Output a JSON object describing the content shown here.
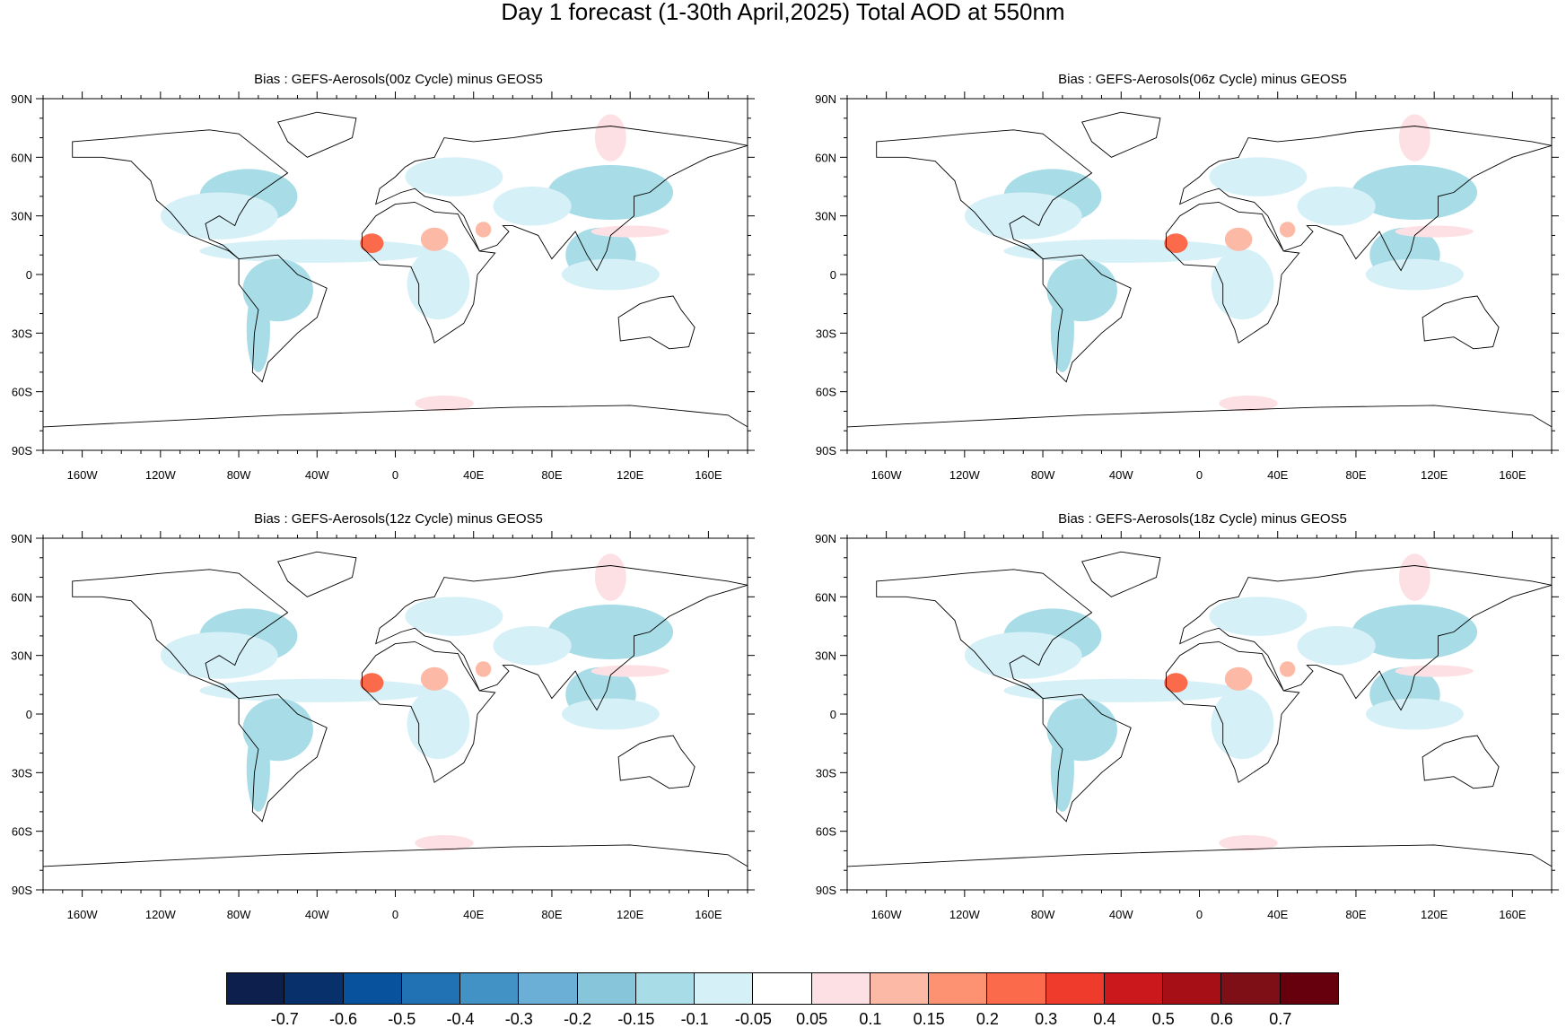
{
  "title": "Day 1 forecast (1-30th April,2025) Total AOD at 550nm",
  "panels": [
    {
      "title": "Bias : GEFS-Aerosols(00z Cycle) minus GEOS5"
    },
    {
      "title": "Bias : GEFS-Aerosols(06z Cycle) minus GEOS5"
    },
    {
      "title": "Bias : GEFS-Aerosols(12z Cycle) minus GEOS5"
    },
    {
      "title": "Bias : GEFS-Aerosols(18z Cycle) minus GEOS5"
    }
  ],
  "axes": {
    "lat_labels": [
      "90N",
      "60N",
      "30N",
      "0",
      "30S",
      "60S",
      "90S"
    ],
    "lat_values": [
      90,
      60,
      30,
      0,
      -30,
      -60,
      -90
    ],
    "lon_labels": [
      "160W",
      "120W",
      "80W",
      "40W",
      "0",
      "40E",
      "80E",
      "120E",
      "160E"
    ],
    "lon_values": [
      -160,
      -120,
      -80,
      -40,
      0,
      40,
      80,
      120,
      160
    ],
    "lon_range": [
      -180,
      180
    ],
    "lat_range": [
      -90,
      90
    ]
  },
  "colorbar": {
    "labels": [
      "-0.7",
      "-0.6",
      "-0.5",
      "-0.4",
      "-0.3",
      "-0.2",
      "-0.15",
      "-0.1",
      "-0.05",
      "0.05",
      "0.1",
      "0.15",
      "0.2",
      "0.3",
      "0.4",
      "0.5",
      "0.6",
      "0.7"
    ],
    "colors": [
      "#0c1f4d",
      "#08306b",
      "#08519c",
      "#2171b5",
      "#4292c6",
      "#6baed6",
      "#86c5da",
      "#a8dce6",
      "#d6f0f8",
      "#ffffff",
      "#fde0e4",
      "#fcb9a6",
      "#fc9272",
      "#fb6a4a",
      "#ef3b2c",
      "#cb181d",
      "#a50f15",
      "#7f0f16",
      "#67000d"
    ]
  },
  "bias_blobs": [
    {
      "lon": 85,
      "lat": 38,
      "rx": 7,
      "ry": 3,
      "color": "#0c1f4d"
    },
    {
      "lon": 100,
      "lat": 37,
      "rx": 14,
      "ry": 4,
      "color": "#4292c6"
    },
    {
      "lon": 120,
      "lat": 44,
      "rx": 10,
      "ry": 8,
      "color": "#4292c6"
    },
    {
      "lon": 110,
      "lat": 42,
      "rx": 32,
      "ry": 14,
      "color": "#a8dce6"
    },
    {
      "lon": 70,
      "lat": 35,
      "rx": 20,
      "ry": 10,
      "color": "#d6f0f8"
    },
    {
      "lon": -75,
      "lat": 40,
      "rx": 25,
      "ry": 14,
      "color": "#a8dce6"
    },
    {
      "lon": -90,
      "lat": 30,
      "rx": 30,
      "ry": 12,
      "color": "#d6f0f8"
    },
    {
      "lon": -40,
      "lat": 12,
      "rx": 60,
      "ry": 6,
      "color": "#d6f0f8"
    },
    {
      "lon": -60,
      "lat": -8,
      "rx": 18,
      "ry": 16,
      "color": "#a8dce6"
    },
    {
      "lon": -70,
      "lat": -28,
      "rx": 6,
      "ry": 22,
      "color": "#a8dce6"
    },
    {
      "lon": 22,
      "lat": -3,
      "rx": 10,
      "ry": 6,
      "color": "#6baed6"
    },
    {
      "lon": 22,
      "lat": -5,
      "rx": 16,
      "ry": 18,
      "color": "#d6f0f8"
    },
    {
      "lon": 105,
      "lat": 10,
      "rx": 18,
      "ry": 14,
      "color": "#a8dce6"
    },
    {
      "lon": 110,
      "lat": 0,
      "rx": 25,
      "ry": 8,
      "color": "#d6f0f8"
    },
    {
      "lon": 30,
      "lat": 50,
      "rx": 25,
      "ry": 10,
      "color": "#d6f0f8"
    },
    {
      "lon": -12,
      "lat": 16,
      "rx": 6,
      "ry": 5,
      "color": "#fb6a4a"
    },
    {
      "lon": 20,
      "lat": 18,
      "rx": 7,
      "ry": 6,
      "color": "#fcb9a6"
    },
    {
      "lon": 45,
      "lat": 23,
      "rx": 4,
      "ry": 4,
      "color": "#fcb9a6"
    },
    {
      "lon": 120,
      "lat": 22,
      "rx": 20,
      "ry": 3,
      "color": "#fde0e4"
    },
    {
      "lon": 25,
      "lat": -66,
      "rx": 15,
      "ry": 4,
      "color": "#fde0e4"
    },
    {
      "lon": 110,
      "lat": 70,
      "rx": 8,
      "ry": 12,
      "color": "#fde0e4"
    }
  ],
  "land": [
    {
      "name": "north-america",
      "points": [
        [
          -165,
          68
        ],
        [
          -140,
          70
        ],
        [
          -120,
          72
        ],
        [
          -95,
          74
        ],
        [
          -80,
          72
        ],
        [
          -65,
          60
        ],
        [
          -55,
          52
        ],
        [
          -65,
          45
        ],
        [
          -75,
          38
        ],
        [
          -80,
          30
        ],
        [
          -82,
          25
        ],
        [
          -90,
          30
        ],
        [
          -97,
          26
        ],
        [
          -95,
          18
        ],
        [
          -88,
          15
        ],
        [
          -80,
          8
        ],
        [
          -85,
          12
        ],
        [
          -105,
          20
        ],
        [
          -115,
          32
        ],
        [
          -122,
          38
        ],
        [
          -125,
          48
        ],
        [
          -135,
          58
        ],
        [
          -150,
          60
        ],
        [
          -165,
          60
        ]
      ]
    },
    {
      "name": "south-america",
      "points": [
        [
          -80,
          8
        ],
        [
          -60,
          10
        ],
        [
          -50,
          0
        ],
        [
          -35,
          -7
        ],
        [
          -40,
          -22
        ],
        [
          -50,
          -30
        ],
        [
          -58,
          -38
        ],
        [
          -65,
          -45
        ],
        [
          -68,
          -55
        ],
        [
          -73,
          -50
        ],
        [
          -72,
          -30
        ],
        [
          -70,
          -18
        ],
        [
          -80,
          -5
        ]
      ]
    },
    {
      "name": "africa",
      "points": [
        [
          -17,
          21
        ],
        [
          -10,
          30
        ],
        [
          0,
          36
        ],
        [
          10,
          37
        ],
        [
          20,
          32
        ],
        [
          32,
          31
        ],
        [
          35,
          25
        ],
        [
          43,
          12
        ],
        [
          51,
          11
        ],
        [
          42,
          0
        ],
        [
          40,
          -15
        ],
        [
          35,
          -25
        ],
        [
          20,
          -35
        ],
        [
          18,
          -28
        ],
        [
          12,
          -15
        ],
        [
          12,
          -5
        ],
        [
          8,
          4
        ],
        [
          -8,
          5
        ],
        [
          -17,
          14
        ]
      ]
    },
    {
      "name": "eurasia",
      "points": [
        [
          -10,
          36
        ],
        [
          -8,
          44
        ],
        [
          0,
          50
        ],
        [
          5,
          55
        ],
        [
          10,
          58
        ],
        [
          20,
          60
        ],
        [
          25,
          70
        ],
        [
          40,
          68
        ],
        [
          60,
          70
        ],
        [
          80,
          73
        ],
        [
          110,
          76
        ],
        [
          140,
          72
        ],
        [
          170,
          68
        ],
        [
          180,
          66
        ],
        [
          160,
          60
        ],
        [
          140,
          50
        ],
        [
          130,
          42
        ],
        [
          122,
          40
        ],
        [
          122,
          30
        ],
        [
          110,
          20
        ],
        [
          108,
          12
        ],
        [
          103,
          2
        ],
        [
          98,
          10
        ],
        [
          92,
          22
        ],
        [
          80,
          8
        ],
        [
          73,
          20
        ],
        [
          60,
          25
        ],
        [
          55,
          25
        ],
        [
          58,
          22
        ],
        [
          52,
          15
        ],
        [
          43,
          12
        ],
        [
          35,
          30
        ],
        [
          28,
          37
        ],
        [
          15,
          40
        ],
        [
          10,
          44
        ],
        [
          3,
          42
        ]
      ]
    },
    {
      "name": "australia",
      "points": [
        [
          114,
          -22
        ],
        [
          125,
          -15
        ],
        [
          135,
          -12
        ],
        [
          142,
          -11
        ],
        [
          146,
          -18
        ],
        [
          153,
          -27
        ],
        [
          150,
          -37
        ],
        [
          140,
          -38
        ],
        [
          130,
          -32
        ],
        [
          115,
          -34
        ]
      ]
    },
    {
      "name": "greenland",
      "points": [
        [
          -60,
          78
        ],
        [
          -40,
          83
        ],
        [
          -20,
          80
        ],
        [
          -22,
          70
        ],
        [
          -45,
          60
        ],
        [
          -55,
          68
        ]
      ]
    },
    {
      "name": "antarctica",
      "points": [
        [
          -180,
          -78
        ],
        [
          -120,
          -75
        ],
        [
          -60,
          -72
        ],
        [
          0,
          -70
        ],
        [
          60,
          -68
        ],
        [
          120,
          -67
        ],
        [
          170,
          -72
        ],
        [
          180,
          -78
        ],
        [
          180,
          -90
        ],
        [
          -180,
          -90
        ]
      ]
    }
  ]
}
